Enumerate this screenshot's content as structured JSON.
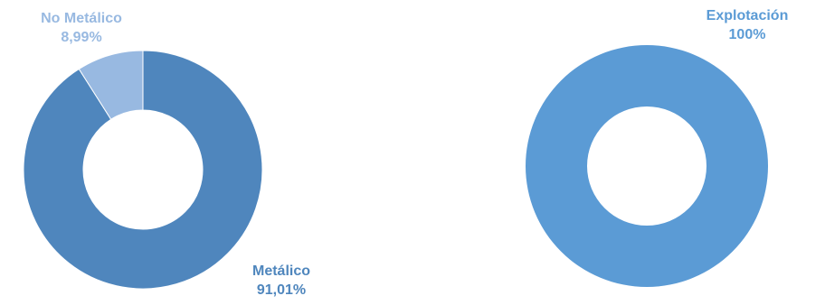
{
  "chart_data": [
    {
      "type": "pie",
      "title": "",
      "categories": [
        "No Metálico",
        "Metálico"
      ],
      "values": [
        8.99,
        91.01
      ],
      "value_labels": [
        "8,99%",
        "91,01%"
      ],
      "colors": [
        "#98b9e1",
        "#4f86bd"
      ],
      "label_colors": [
        "#98b9e1",
        "#4f86bd"
      ],
      "legend": "none"
    },
    {
      "type": "pie",
      "title": "",
      "categories": [
        "Explotación"
      ],
      "values": [
        100
      ],
      "value_labels": [
        "100%"
      ],
      "colors": [
        "#5b9bd5"
      ],
      "label_colors": [
        "#5b9bd5"
      ],
      "legend": "none"
    }
  ]
}
